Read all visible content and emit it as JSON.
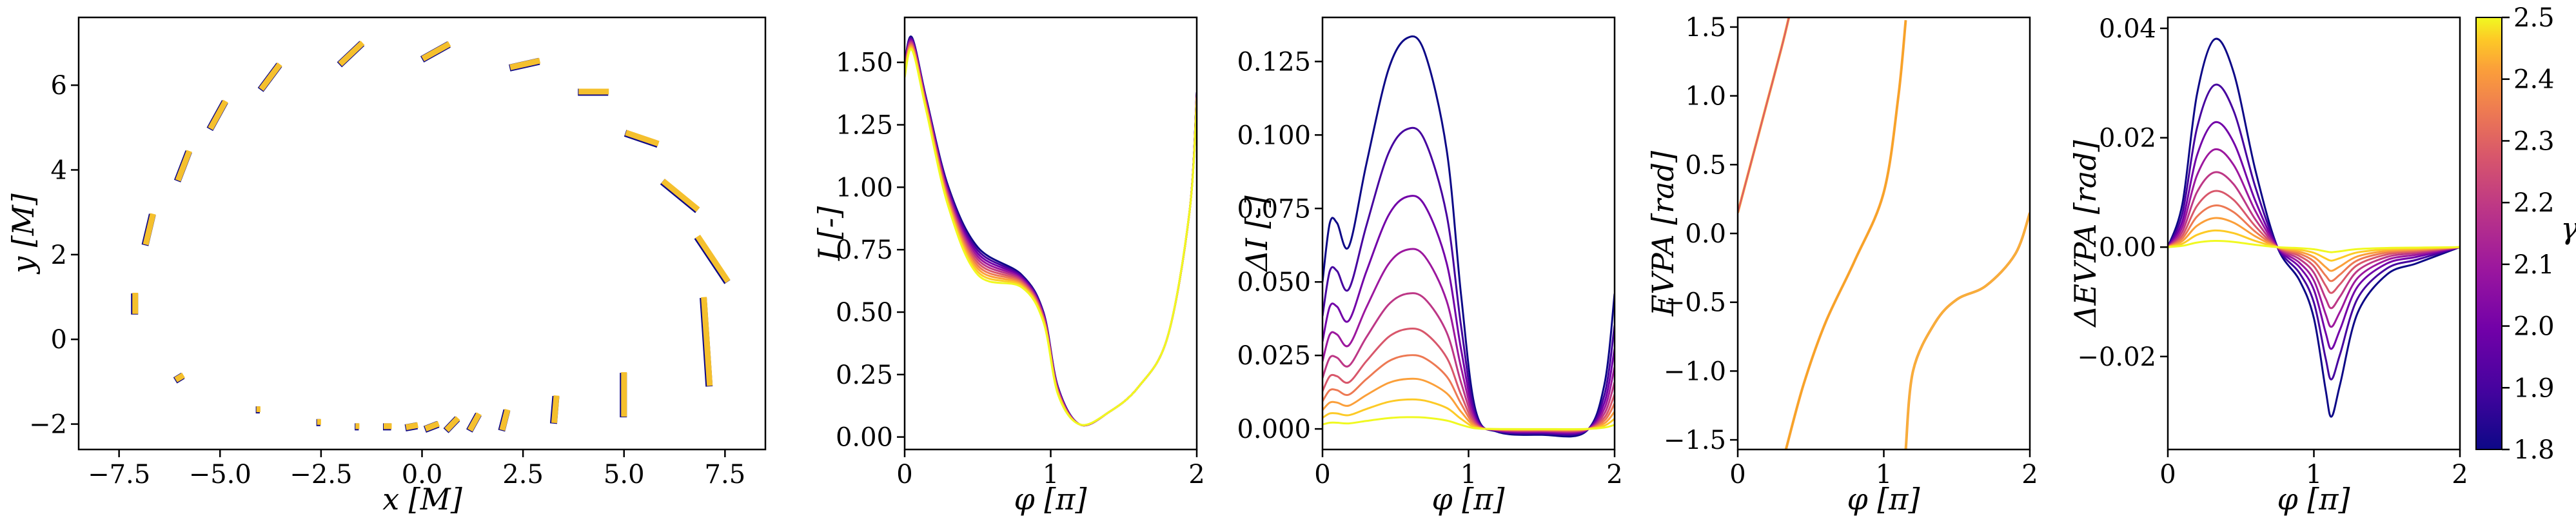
{
  "chart_data": [
    {
      "type": "scatter",
      "panel": "a",
      "xlabel": "x [M]",
      "ylabel": "y [M]",
      "xlim": [
        -8.5,
        8.5
      ],
      "ylim": [
        -2.6,
        7.6
      ],
      "xticks": [
        "−7.5",
        "−5.0",
        "−2.5",
        "0.0",
        "2.5",
        "5.0",
        "7.5"
      ],
      "yticks": [
        "−2",
        "0",
        "2",
        "4",
        "6"
      ],
      "series": [
        {
          "description": "projected polarization segments (top arc)",
          "points": [
            [
              -7.1,
              0.85
            ],
            [
              -6.75,
              2.6
            ],
            [
              -5.9,
              4.1
            ],
            [
              -5.05,
              5.3
            ],
            [
              -3.75,
              6.2
            ],
            [
              -1.75,
              6.75
            ],
            [
              0.35,
              6.8
            ],
            [
              2.55,
              6.5
            ],
            [
              4.25,
              5.85
            ],
            [
              5.45,
              4.75
            ],
            [
              6.4,
              3.4
            ],
            [
              7.2,
              1.9
            ],
            [
              7.05,
              -0.05
            ]
          ],
          "angles_deg": [
            90,
            76,
            68,
            60,
            52,
            42,
            28,
            12,
            0,
            -18,
            -38,
            -55,
            -86
          ],
          "lengths": [
            0.5,
            0.75,
            0.75,
            0.75,
            0.75,
            0.75,
            0.75,
            0.75,
            0.75,
            0.85,
            1.1,
            1.3,
            2.1
          ]
        },
        {
          "description": "projected polarization segments (bottom row)",
          "points": [
            [
              -6.0,
              -0.9
            ],
            [
              -4.05,
              -1.65
            ],
            [
              -2.55,
              -1.95
            ],
            [
              -1.6,
              -2.05
            ],
            [
              -0.85,
              -2.05
            ],
            [
              -0.25,
              -2.05
            ],
            [
              0.25,
              -2.05
            ],
            [
              0.75,
              -2.0
            ],
            [
              1.3,
              -1.95
            ],
            [
              2.05,
              -1.9
            ],
            [
              3.3,
              -1.65
            ],
            [
              5.0,
              -1.3
            ]
          ],
          "angles_deg": [
            30,
            0,
            0,
            0,
            0,
            10,
            20,
            45,
            60,
            75,
            85,
            90
          ],
          "lengths": [
            0.22,
            0.1,
            0.1,
            0.1,
            0.2,
            0.3,
            0.35,
            0.4,
            0.45,
            0.5,
            0.65,
            1.05
          ]
        }
      ]
    },
    {
      "type": "line",
      "panel": "b",
      "xlabel": "φ [π]",
      "ylabel": "I [-]",
      "xlim": [
        0,
        2
      ],
      "ylim": [
        -0.05,
        1.68
      ],
      "xticks": [
        "0",
        "1",
        "2"
      ],
      "yticks": [
        "0.00",
        "0.25",
        "0.50",
        "0.75",
        "1.00",
        "1.25",
        "1.50"
      ],
      "x": [
        0,
        0.05,
        0.15,
        0.3,
        0.5,
        0.8,
        0.95,
        1.05,
        1.2,
        1.4,
        1.6,
        1.8,
        1.95,
        2.0
      ],
      "series": [
        {
          "gamma": 1.8,
          "values": [
            1.5,
            1.6,
            1.35,
            1.0,
            0.76,
            0.65,
            0.5,
            0.2,
            0.05,
            0.1,
            0.2,
            0.4,
            0.9,
            1.38
          ]
        },
        {
          "gamma": 2.5,
          "values": [
            1.44,
            1.55,
            1.3,
            0.92,
            0.65,
            0.6,
            0.46,
            0.17,
            0.05,
            0.1,
            0.2,
            0.4,
            0.9,
            1.35
          ]
        }
      ]
    },
    {
      "type": "line",
      "panel": "c",
      "xlabel": "φ [π]",
      "ylabel": "ΔI [-]",
      "xlim": [
        0,
        2
      ],
      "ylim": [
        -0.007,
        0.14
      ],
      "xticks": [
        "0",
        "1",
        "2"
      ],
      "yticks": [
        "0.000",
        "0.025",
        "0.050",
        "0.075",
        "0.100",
        "0.125"
      ],
      "x": [
        0,
        0.05,
        0.1,
        0.18,
        0.3,
        0.45,
        0.58,
        0.7,
        0.85,
        0.95,
        1.05,
        1.2,
        1.5,
        1.8,
        1.93,
        2.0
      ],
      "series": [
        {
          "gamma": 1.8,
          "values": [
            0.05,
            0.07,
            0.07,
            0.062,
            0.09,
            0.122,
            0.133,
            0.128,
            0.095,
            0.045,
            0.006,
            -0.001,
            -0.002,
            -0.001,
            0.015,
            0.046
          ]
        }
      ],
      "peaks_by_gamma": {
        "1.8": 0.133,
        "1.87": 0.102,
        "1.95": 0.079,
        "2.03": 0.061,
        "2.1": 0.046,
        "2.18": 0.034,
        "2.26": 0.025,
        "2.34": 0.017,
        "2.42": 0.01,
        "2.5": 0.004
      }
    },
    {
      "type": "line",
      "panel": "d",
      "xlabel": "φ [π]",
      "ylabel": "EVPA [rad]",
      "xlim": [
        0,
        2
      ],
      "ylim": [
        -1.57,
        1.57
      ],
      "xticks": [
        "0",
        "1",
        "2"
      ],
      "yticks": [
        "−1.5",
        "−1.0",
        "−0.5",
        "0.0",
        "0.5",
        "1.0",
        "1.5"
      ],
      "branches": [
        {
          "x": [
            0,
            0.1,
            0.2,
            0.3,
            0.35
          ],
          "values": [
            0.15,
            0.55,
            0.95,
            1.35,
            1.57
          ]
        },
        {
          "x": [
            0.33,
            0.45,
            0.6,
            0.8,
            1.0,
            1.1,
            1.15
          ],
          "values": [
            -1.57,
            -1.1,
            -0.65,
            -0.2,
            0.3,
            1.0,
            1.55
          ]
        },
        {
          "x": [
            1.15,
            1.2,
            1.35,
            1.5,
            1.7,
            1.9,
            2.0
          ],
          "values": [
            -1.57,
            -1.0,
            -0.65,
            -0.48,
            -0.38,
            -0.15,
            0.15
          ]
        }
      ]
    },
    {
      "type": "line",
      "panel": "e",
      "xlabel": "φ [π]",
      "ylabel": "ΔEVPA [rad]",
      "xlim": [
        0,
        2
      ],
      "ylim": [
        -0.037,
        0.042
      ],
      "xticks": [
        "0",
        "1",
        "2"
      ],
      "yticks": [
        "−0.02",
        "0.00",
        "0.02",
        "0.04"
      ],
      "x": [
        0,
        0.1,
        0.2,
        0.32,
        0.45,
        0.6,
        0.75,
        0.9,
        1.0,
        1.08,
        1.12,
        1.18,
        1.3,
        1.5,
        1.7,
        1.9,
        2.0
      ],
      "series": [
        {
          "gamma": 1.8,
          "values": [
            0.0,
            0.008,
            0.028,
            0.038,
            0.032,
            0.014,
            0.0,
            -0.006,
            -0.013,
            -0.026,
            -0.031,
            -0.025,
            -0.012,
            -0.005,
            -0.003,
            -0.001,
            0.0
          ]
        }
      ],
      "amplitudes_by_gamma": {
        "1.8": 1.0,
        "1.87": 0.78,
        "1.95": 0.6,
        "2.03": 0.47,
        "2.1": 0.36,
        "2.18": 0.27,
        "2.26": 0.2,
        "2.34": 0.14,
        "2.42": 0.08,
        "2.5": 0.03
      }
    }
  ],
  "colorbar": {
    "label": "γ",
    "min": 1.8,
    "max": 2.5,
    "ticks": [
      "1.8",
      "1.9",
      "2.0",
      "2.1",
      "2.2",
      "2.3",
      "2.4",
      "2.5"
    ],
    "colormap": "plasma",
    "colors": [
      "#0d0887",
      "#46039f",
      "#7201a8",
      "#9c179e",
      "#bd3786",
      "#d8576b",
      "#ed7953",
      "#fb9f3a",
      "#fdca26",
      "#f0f921"
    ]
  }
}
